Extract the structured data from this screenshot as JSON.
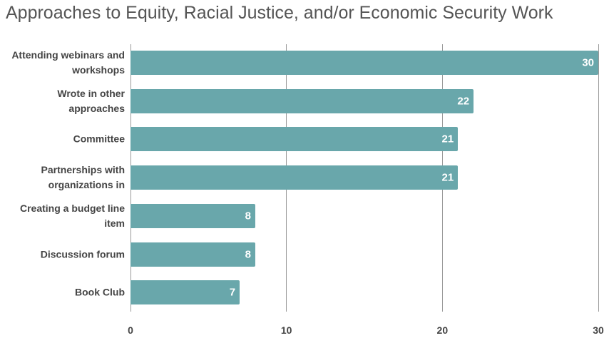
{
  "chart_data": {
    "type": "bar",
    "orientation": "horizontal",
    "title": "Approaches to Equity, Racial Justice, and/or Economic Security Work",
    "categories": [
      "Attending webinars and workshops",
      "Wrote in other approaches",
      "Committee",
      "Partnerships with organizations in",
      "Creating a budget line item",
      "Discussion forum",
      "Book Club"
    ],
    "values": [
      30,
      22,
      21,
      21,
      8,
      8,
      7
    ],
    "color": "#69a7ab",
    "xlim": [
      0,
      30
    ],
    "xticks": [
      0,
      10,
      20,
      30
    ],
    "grid": true
  }
}
